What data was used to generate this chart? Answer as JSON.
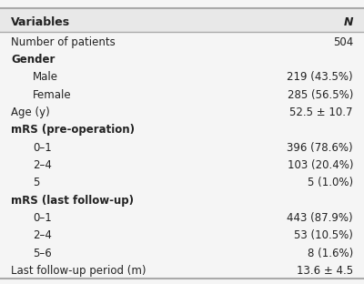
{
  "header": [
    "Variables",
    "N"
  ],
  "rows": [
    {
      "label": "Number of patients",
      "value": "504",
      "indent": 0,
      "bold": false
    },
    {
      "label": "Gender",
      "value": "",
      "indent": 0,
      "bold": true
    },
    {
      "label": "Male",
      "value": "219 (43.5%)",
      "indent": 1,
      "bold": false
    },
    {
      "label": "Female",
      "value": "285 (56.5%)",
      "indent": 1,
      "bold": false
    },
    {
      "label": "Age (y)",
      "value": "52.5 ± 10.7",
      "indent": 0,
      "bold": false
    },
    {
      "label": "mRS (pre-operation)",
      "value": "",
      "indent": 0,
      "bold": true
    },
    {
      "label": "0–1",
      "value": "396 (78.6%)",
      "indent": 1,
      "bold": false
    },
    {
      "label": "2–4",
      "value": "103 (20.4%)",
      "indent": 1,
      "bold": false
    },
    {
      "label": "5",
      "value": "5 (1.0%)",
      "indent": 1,
      "bold": false
    },
    {
      "label": "mRS (last follow-up)",
      "value": "",
      "indent": 0,
      "bold": true
    },
    {
      "label": "0–1",
      "value": "443 (87.9%)",
      "indent": 1,
      "bold": false
    },
    {
      "label": "2–4",
      "value": "53 (10.5%)",
      "indent": 1,
      "bold": false
    },
    {
      "label": "5–6",
      "value": "8 (1.6%)",
      "indent": 1,
      "bold": false
    },
    {
      "label": "Last follow-up period (m)",
      "value": "13.6 ± 4.5",
      "indent": 0,
      "bold": false
    }
  ],
  "bg_color": "#f5f5f5",
  "header_bg": "#e8e8e8",
  "line_color": "#aaaaaa",
  "text_color": "#222222",
  "font_size": 8.5,
  "header_font_size": 9.0,
  "indent_amt": 0.06,
  "fig_width": 4.0,
  "fig_height": 3.12
}
